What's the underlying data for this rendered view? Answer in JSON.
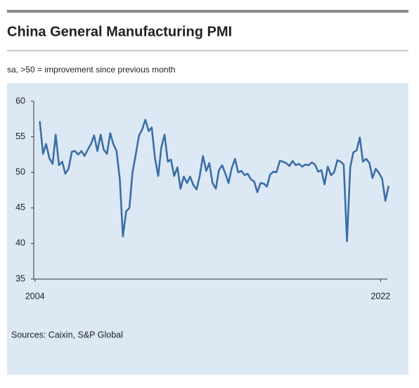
{
  "chart_data": {
    "type": "line",
    "title": "China General Manufacturing PMI",
    "subtitle": "sa, >50 = improvement since previous month",
    "source": "Sources: Caixin, S&P Global",
    "x": [
      2004.25,
      2004.42,
      2004.58,
      2004.75,
      2004.92,
      2005.08,
      2005.25,
      2005.42,
      2005.58,
      2005.75,
      2005.92,
      2006.08,
      2006.25,
      2006.42,
      2006.58,
      2006.75,
      2006.92,
      2007.08,
      2007.25,
      2007.42,
      2007.58,
      2007.75,
      2007.92,
      2008.08,
      2008.25,
      2008.42,
      2008.58,
      2008.75,
      2008.92,
      2009.08,
      2009.25,
      2009.42,
      2009.58,
      2009.75,
      2009.92,
      2010.08,
      2010.25,
      2010.42,
      2010.58,
      2010.75,
      2010.92,
      2011.08,
      2011.25,
      2011.42,
      2011.58,
      2011.75,
      2011.92,
      2012.08,
      2012.25,
      2012.42,
      2012.58,
      2012.75,
      2012.92,
      2013.08,
      2013.25,
      2013.42,
      2013.58,
      2013.75,
      2013.92,
      2014.08,
      2014.25,
      2014.42,
      2014.58,
      2014.75,
      2014.92,
      2015.08,
      2015.25,
      2015.42,
      2015.58,
      2015.75,
      2015.92,
      2016.08,
      2016.25,
      2016.42,
      2016.58,
      2016.75,
      2016.92,
      2017.08,
      2017.25,
      2017.42,
      2017.58,
      2017.75,
      2017.92,
      2018.08,
      2018.25,
      2018.42,
      2018.58,
      2018.75,
      2018.92,
      2019.08,
      2019.25,
      2019.42,
      2019.58,
      2019.75,
      2019.92,
      2020.08,
      2020.25,
      2020.42,
      2020.58,
      2020.75,
      2020.92,
      2021.08,
      2021.25,
      2021.42,
      2021.58,
      2021.75,
      2021.92,
      2022.08,
      2022.25,
      2022.42
    ],
    "series": [
      {
        "name": "China General Manufacturing PMI",
        "color": "#3c6ea6",
        "values": [
          57.2,
          52.6,
          54,
          52,
          51.2,
          55.3,
          51,
          51.5,
          49.8,
          50.5,
          52.9,
          53,
          52.5,
          53,
          52.3,
          53.2,
          54,
          55.2,
          53,
          55.3,
          53.2,
          52.6,
          55.5,
          54,
          53,
          49,
          41,
          44.5,
          45,
          50,
          52.5,
          55.2,
          56,
          57.4,
          55.8,
          56.3,
          52,
          49.5,
          53.5,
          55.3,
          51.5,
          51.8,
          49.5,
          50.7,
          47.7,
          49.4,
          48.5,
          49.4,
          48.2,
          47.6,
          49.5,
          52.3,
          50.2,
          51.3,
          48.5,
          47.7,
          50.3,
          51,
          49.8,
          48.5,
          50.6,
          51.9,
          50,
          50.2,
          49.6,
          49.8,
          49,
          48.7,
          47.2,
          48.5,
          48.4,
          48,
          49.7,
          50.1,
          50,
          51.6,
          51.5,
          51.3,
          50.9,
          51.6,
          51,
          51.2,
          50.8,
          51.1,
          51,
          51.4,
          51.1,
          50.1,
          50.3,
          48.3,
          50.8,
          49.6,
          50,
          51.7,
          51.5,
          51.1,
          40.3,
          50.7,
          52.8,
          53.1,
          54.9,
          51.5,
          51.9,
          51.3,
          49.2,
          50.5,
          49.9,
          49.1,
          46,
          48.1
        ]
      }
    ],
    "xlim": [
      2003.9,
      2022.5
    ],
    "xticks": [
      2004,
      2022
    ],
    "ylim": [
      35,
      60
    ],
    "yticks": [
      35,
      40,
      45,
      50,
      55,
      60
    ]
  }
}
